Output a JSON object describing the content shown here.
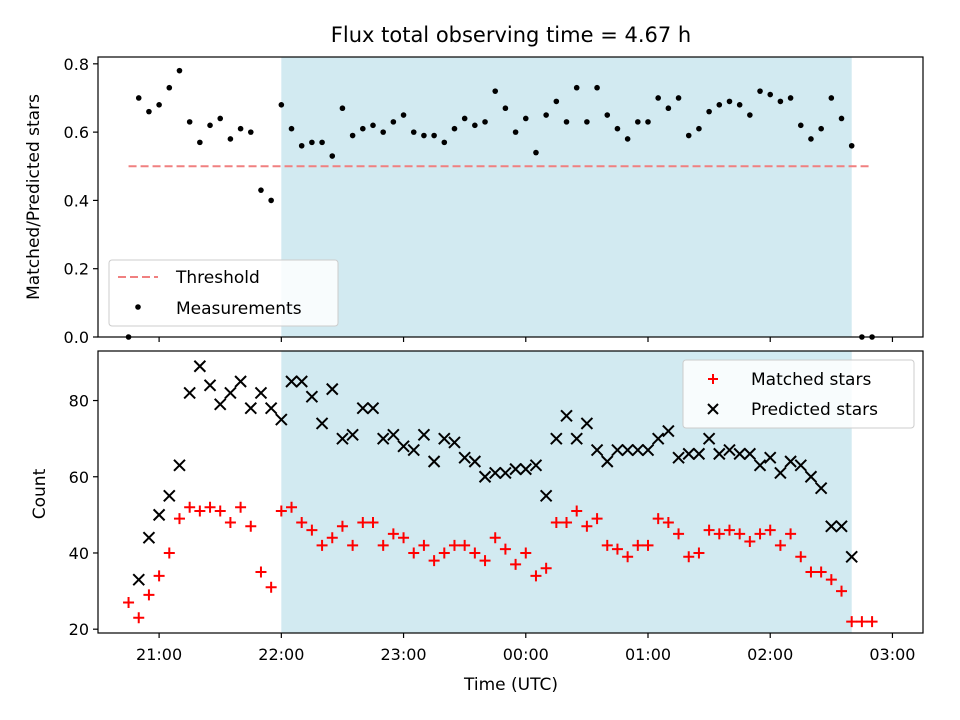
{
  "title": "Flux total observing time = 4.67 h",
  "colors": {
    "shade": "#add8e6",
    "threshold": "#f08080",
    "matched": "#ff0000",
    "predicted": "#000000"
  },
  "chart_data": [
    {
      "type": "scatter",
      "ylabel": "Matched/Predicted stars",
      "ylim": [
        0,
        0.82
      ],
      "xlim": [
        -3.5,
        3.25
      ],
      "yticks": [
        "0.0",
        "0.2",
        "0.4",
        "0.6",
        "0.8"
      ],
      "shaded_span": [
        "22:00",
        "02:40"
      ],
      "threshold": {
        "name": "Threshold",
        "value": 0.5,
        "x_range": [
          "20:45",
          "02:50"
        ]
      },
      "legend": {
        "position": "lower-left",
        "entries": [
          "Threshold",
          "Measurements"
        ]
      },
      "series": [
        {
          "name": "Measurements",
          "x": [
            "20:45",
            "20:50",
            "20:55",
            "21:00",
            "21:05",
            "21:10",
            "21:15",
            "21:20",
            "21:25",
            "21:30",
            "21:35",
            "21:40",
            "21:45",
            "21:50",
            "21:55",
            "22:00",
            "22:05",
            "22:10",
            "22:15",
            "22:20",
            "22:25",
            "22:30",
            "22:35",
            "22:40",
            "22:45",
            "22:50",
            "22:55",
            "23:00",
            "23:05",
            "23:10",
            "23:15",
            "23:20",
            "23:25",
            "23:30",
            "23:35",
            "23:40",
            "23:45",
            "23:50",
            "23:55",
            "00:00",
            "00:05",
            "00:10",
            "00:15",
            "00:20",
            "00:25",
            "00:30",
            "00:35",
            "00:40",
            "00:45",
            "00:50",
            "00:55",
            "01:00",
            "01:05",
            "01:10",
            "01:15",
            "01:20",
            "01:25",
            "01:30",
            "01:35",
            "01:40",
            "01:45",
            "01:50",
            "01:55",
            "02:00",
            "02:05",
            "02:10",
            "02:15",
            "02:20",
            "02:25",
            "02:30",
            "02:35",
            "02:40",
            "02:45",
            "02:50"
          ],
          "y": [
            0.0,
            0.7,
            0.66,
            0.68,
            0.73,
            0.78,
            0.63,
            0.57,
            0.62,
            0.64,
            0.58,
            0.61,
            0.6,
            0.43,
            0.4,
            0.68,
            0.61,
            0.56,
            0.57,
            0.57,
            0.53,
            0.67,
            0.59,
            0.61,
            0.62,
            0.6,
            0.63,
            0.65,
            0.6,
            0.59,
            0.59,
            0.57,
            0.61,
            0.64,
            0.62,
            0.63,
            0.72,
            0.67,
            0.6,
            0.64,
            0.54,
            0.65,
            0.69,
            0.63,
            0.73,
            0.63,
            0.73,
            0.65,
            0.61,
            0.58,
            0.63,
            0.63,
            0.7,
            0.67,
            0.7,
            0.59,
            0.61,
            0.66,
            0.68,
            0.69,
            0.68,
            0.65,
            0.72,
            0.71,
            0.69,
            0.7,
            0.62,
            0.58,
            0.61,
            0.7,
            0.64,
            0.56,
            0.0,
            0.0
          ]
        }
      ]
    },
    {
      "type": "scatter",
      "xlabel": "Time (UTC)",
      "ylabel": "Count",
      "ylim": [
        19,
        93
      ],
      "xlim": [
        -3.5,
        3.25
      ],
      "yticks": [
        "20",
        "40",
        "60",
        "80"
      ],
      "xticks": [
        "21:00",
        "22:00",
        "23:00",
        "00:00",
        "01:00",
        "02:00",
        "03:00"
      ],
      "shaded_span": [
        "22:00",
        "02:40"
      ],
      "legend": {
        "position": "upper-right",
        "entries": [
          "Matched stars",
          "Predicted stars"
        ]
      },
      "series": [
        {
          "name": "Matched stars",
          "x": [
            "20:45",
            "20:50",
            "20:55",
            "21:00",
            "21:05",
            "21:10",
            "21:15",
            "21:20",
            "21:25",
            "21:30",
            "21:35",
            "21:40",
            "21:45",
            "21:50",
            "21:55",
            "22:00",
            "22:05",
            "22:10",
            "22:15",
            "22:20",
            "22:25",
            "22:30",
            "22:35",
            "22:40",
            "22:45",
            "22:50",
            "22:55",
            "23:00",
            "23:05",
            "23:10",
            "23:15",
            "23:20",
            "23:25",
            "23:30",
            "23:35",
            "23:40",
            "23:45",
            "23:50",
            "23:55",
            "00:00",
            "00:05",
            "00:10",
            "00:15",
            "00:20",
            "00:25",
            "00:30",
            "00:35",
            "00:40",
            "00:45",
            "00:50",
            "00:55",
            "01:00",
            "01:05",
            "01:10",
            "01:15",
            "01:20",
            "01:25",
            "01:30",
            "01:35",
            "01:40",
            "01:45",
            "01:50",
            "01:55",
            "02:00",
            "02:05",
            "02:10",
            "02:15",
            "02:20",
            "02:25",
            "02:30",
            "02:35",
            "02:40",
            "02:45",
            "02:50"
          ],
          "y": [
            27,
            23,
            29,
            34,
            40,
            49,
            52,
            51,
            52,
            51,
            48,
            52,
            47,
            35,
            31,
            51,
            52,
            48,
            46,
            42,
            44,
            47,
            42,
            48,
            48,
            42,
            45,
            44,
            40,
            42,
            38,
            40,
            42,
            42,
            40,
            38,
            44,
            41,
            37,
            40,
            34,
            36,
            48,
            48,
            51,
            47,
            49,
            42,
            41,
            39,
            42,
            42,
            49,
            48,
            45,
            39,
            40,
            46,
            45,
            46,
            45,
            43,
            45,
            46,
            42,
            45,
            39,
            35,
            35,
            33,
            30,
            22,
            22,
            22
          ]
        },
        {
          "name": "Predicted stars",
          "x": [
            "20:50",
            "20:55",
            "21:00",
            "21:05",
            "21:10",
            "21:15",
            "21:20",
            "21:25",
            "21:30",
            "21:35",
            "21:40",
            "21:45",
            "21:50",
            "21:55",
            "22:00",
            "22:05",
            "22:10",
            "22:15",
            "22:20",
            "22:25",
            "22:30",
            "22:35",
            "22:40",
            "22:45",
            "22:50",
            "22:55",
            "23:00",
            "23:05",
            "23:10",
            "23:15",
            "23:20",
            "23:25",
            "23:30",
            "23:35",
            "23:40",
            "23:45",
            "23:50",
            "23:55",
            "00:00",
            "00:05",
            "00:10",
            "00:15",
            "00:20",
            "00:25",
            "00:30",
            "00:35",
            "00:40",
            "00:45",
            "00:50",
            "00:55",
            "01:00",
            "01:05",
            "01:10",
            "01:15",
            "01:20",
            "01:25",
            "01:30",
            "01:35",
            "01:40",
            "01:45",
            "01:50",
            "01:55",
            "02:00",
            "02:05",
            "02:10",
            "02:15",
            "02:20",
            "02:25",
            "02:30",
            "02:35",
            "02:40"
          ],
          "y": [
            33,
            44,
            50,
            55,
            63,
            82,
            89,
            84,
            79,
            82,
            85,
            78,
            82,
            78,
            75,
            85,
            85,
            81,
            74,
            83,
            70,
            71,
            78,
            78,
            70,
            71,
            68,
            67,
            71,
            64,
            70,
            69,
            65,
            64,
            60,
            61,
            61,
            62,
            62,
            63,
            55,
            70,
            76,
            70,
            74,
            67,
            64,
            67,
            67,
            67,
            67,
            70,
            72,
            65,
            66,
            66,
            70,
            66,
            67,
            66,
            66,
            63,
            65,
            61,
            64,
            63,
            60,
            57,
            47,
            47,
            39
          ]
        }
      ]
    }
  ]
}
